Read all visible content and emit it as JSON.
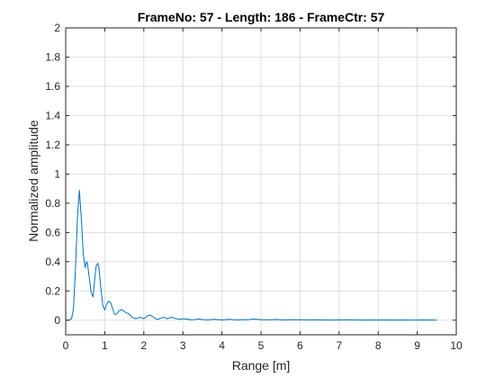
{
  "chart_data": {
    "type": "line",
    "title": "FrameNo: 57 - Length: 186 - FrameCtr: 57",
    "xlabel": "Range [m]",
    "ylabel": "Normalized amplitude",
    "xlim": [
      0,
      10
    ],
    "ylim": [
      -0.1,
      2
    ],
    "xticks": [
      "0",
      "1",
      "2",
      "3",
      "4",
      "5",
      "6",
      "7",
      "8",
      "9",
      "10"
    ],
    "yticks": [
      "0",
      "0.2",
      "0.4",
      "0.6",
      "0.8",
      "1",
      "1.2",
      "1.4",
      "1.6",
      "1.8",
      "2"
    ],
    "grid": true,
    "colors": {
      "series": "#0072bd",
      "grid": "#dfdfdf",
      "axis": "#262626"
    },
    "series": [
      {
        "x": [
          0,
          0.05,
          0.1,
          0.15,
          0.2,
          0.25,
          0.3,
          0.35,
          0.4,
          0.45,
          0.5,
          0.52,
          0.55,
          0.6,
          0.65,
          0.7,
          0.75,
          0.78,
          0.82,
          0.85,
          0.9,
          0.95,
          1.0,
          1.05,
          1.1,
          1.15,
          1.2,
          1.25,
          1.3,
          1.35,
          1.4,
          1.45,
          1.5,
          1.55,
          1.6,
          1.65,
          1.7,
          1.75,
          1.8,
          1.85,
          1.9,
          1.95,
          2.0,
          2.05,
          2.1,
          2.15,
          2.2,
          2.25,
          2.3,
          2.35,
          2.4,
          2.45,
          2.5,
          2.55,
          2.6,
          2.65,
          2.7,
          2.8,
          2.9,
          3.0,
          3.1,
          3.2,
          3.3,
          3.4,
          3.5,
          3.6,
          3.7,
          3.8,
          3.9,
          4.0,
          4.1,
          4.2,
          4.3,
          4.4,
          4.5,
          4.6,
          4.7,
          4.8,
          4.9,
          5.0,
          5.2,
          5.4,
          5.6,
          5.8,
          6.0,
          6.2,
          6.4,
          6.6,
          6.8,
          7.0,
          7.2,
          7.4,
          7.6,
          7.8,
          8.0,
          8.2,
          8.4,
          8.6,
          8.8,
          9.0,
          9.2,
          9.4,
          9.5
        ],
        "y": [
          0.0,
          0.0,
          0.0,
          0.01,
          0.08,
          0.35,
          0.7,
          0.89,
          0.7,
          0.45,
          0.36,
          0.39,
          0.4,
          0.3,
          0.19,
          0.16,
          0.3,
          0.37,
          0.39,
          0.36,
          0.22,
          0.1,
          0.07,
          0.11,
          0.13,
          0.12,
          0.08,
          0.04,
          0.04,
          0.06,
          0.07,
          0.07,
          0.06,
          0.05,
          0.045,
          0.035,
          0.02,
          0.015,
          0.01,
          0.015,
          0.02,
          0.015,
          0.01,
          0.02,
          0.03,
          0.035,
          0.03,
          0.02,
          0.01,
          0.005,
          0.01,
          0.015,
          0.02,
          0.015,
          0.01,
          0.015,
          0.02,
          0.012,
          0.005,
          0.01,
          0.008,
          0.003,
          0.004,
          0.008,
          0.005,
          0.002,
          0.003,
          0.006,
          0.004,
          0.002,
          0.004,
          0.006,
          0.003,
          0.002,
          0.004,
          0.003,
          0.005,
          0.008,
          0.006,
          0.004,
          0.003,
          0.005,
          0.002,
          0.004,
          0.003,
          0.002,
          0.003,
          0.002,
          0.001,
          0.002,
          0.003,
          0.002,
          0.001,
          0.002,
          0.001,
          0.002,
          0.001,
          0.002,
          0.001,
          0.001,
          0.002,
          0.001,
          0.001
        ]
      }
    ]
  }
}
